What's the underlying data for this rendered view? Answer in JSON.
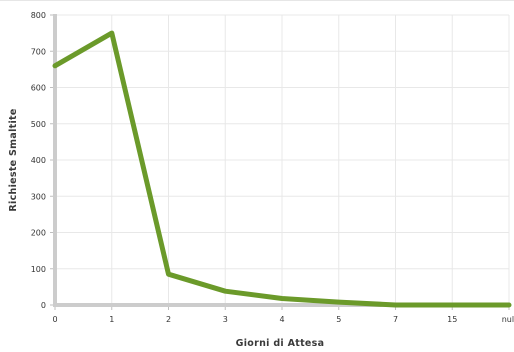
{
  "chart_data": {
    "type": "line",
    "xlabel": "Giorni di Attesa",
    "ylabel": "Richieste Smaltite",
    "categories": [
      "0",
      "1",
      "2",
      "3",
      "4",
      "5",
      "7",
      "15",
      "null"
    ],
    "series": [
      {
        "values": [
          660,
          750,
          85,
          38,
          18,
          8,
          0,
          0,
          0
        ]
      }
    ],
    "ylim": [
      0,
      800
    ],
    "yticks": [
      0,
      100,
      200,
      300,
      400,
      500,
      600,
      700,
      800
    ],
    "grid": true,
    "line_color": "#6b9a2a",
    "axis_color": "#cccccc"
  }
}
